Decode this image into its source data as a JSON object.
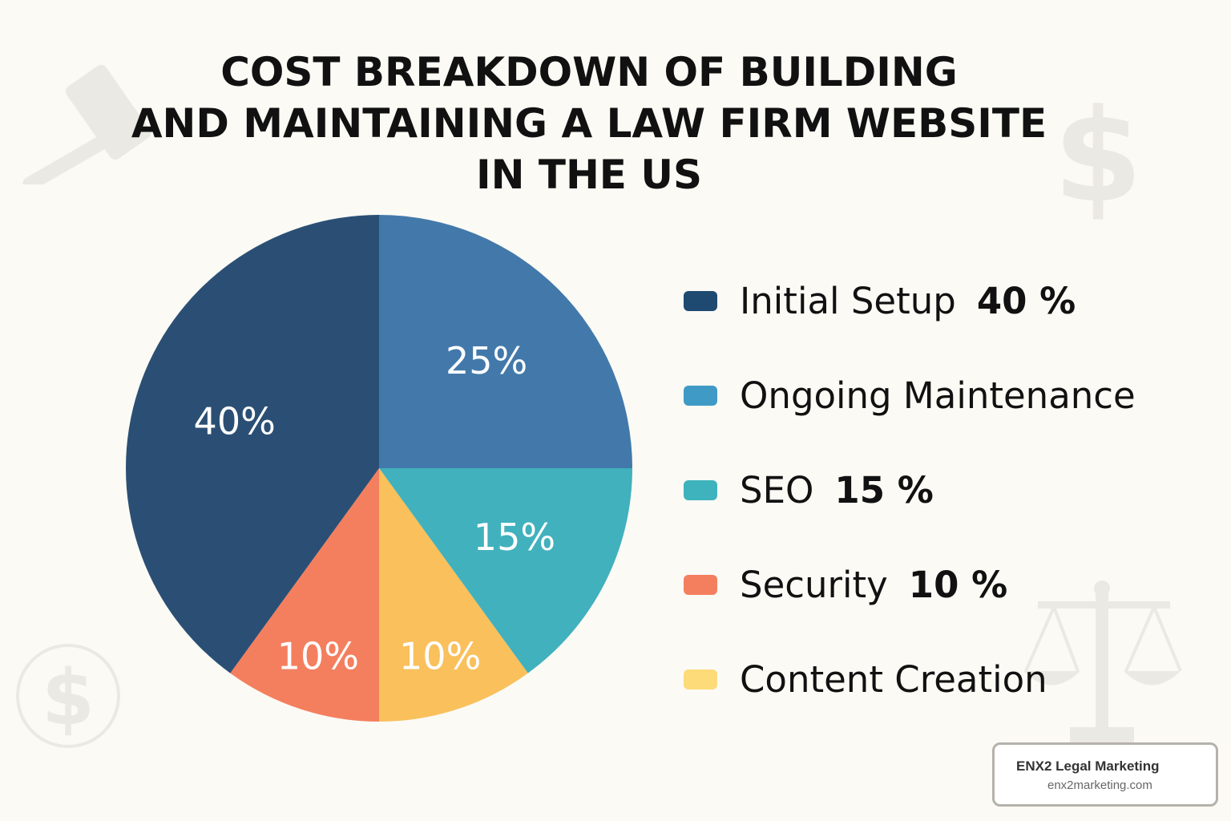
{
  "chart_data": {
    "type": "pie",
    "title": [
      "COST BREAKDOWN OF BUILDING",
      "AND MAINTAINING A LAW FIRM WEBSITE",
      "IN THE US"
    ],
    "slices": [
      {
        "name": "Ongoing Maintenance",
        "value": 25,
        "label": "25%",
        "color": "#4279aa"
      },
      {
        "name": "SEO",
        "value": 15,
        "label": "15%",
        "color": "#41b1bd"
      },
      {
        "name": "Content Creation",
        "value": 10,
        "label": "10%",
        "color": "#f9c05c"
      },
      {
        "name": "Security",
        "value": 10,
        "label": "10%",
        "color": "#f47f5f"
      },
      {
        "name": "Initial Setup",
        "value": 40,
        "label": "40%",
        "color": "#2b4f74"
      }
    ],
    "start_angle": "top",
    "direction": "clockwise",
    "legend_position": "right",
    "legend": [
      {
        "label": "Initial Setup",
        "pct": "40 %",
        "color": "#1e4a72"
      },
      {
        "label": "Ongoing Maintenance",
        "pct": "",
        "color": "#3f9ac6"
      },
      {
        "label": "SEO",
        "pct": "15 %",
        "color": "#3fb3bd"
      },
      {
        "label": "Security",
        "pct": "10 %",
        "color": "#f47f5f"
      },
      {
        "label": "Content Creation",
        "pct": "",
        "color": "#fddb78"
      }
    ]
  },
  "decorations": [
    "gavel-icon",
    "dollar-icon",
    "dollar-coin-icon",
    "scales-of-justice-icon"
  ],
  "brand": {
    "name": "ENX2 Legal Marketing",
    "url": "enx2marketing.com"
  }
}
